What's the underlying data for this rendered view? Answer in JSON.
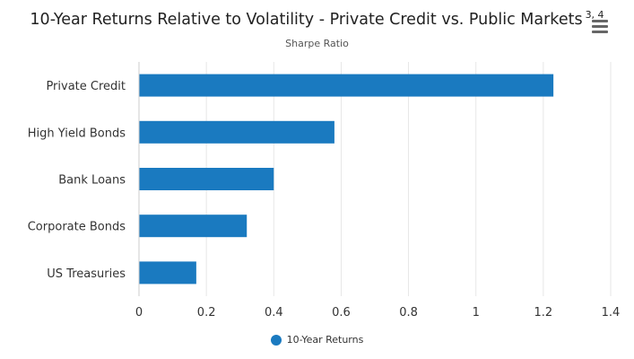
{
  "header": {
    "title": "10-Year Returns Relative to Volatility - Private Credit vs. Public Markets",
    "title_superscript": "3, 4",
    "subtitle": "Sharpe Ratio",
    "menu_icon": "hamburger-menu-icon"
  },
  "legend": {
    "label": "10-Year Returns"
  },
  "colors": {
    "bar": "#1a7ac0",
    "grid": "#e6e6e6",
    "axis_text": "#333333"
  },
  "chart_data": {
    "type": "bar",
    "orientation": "horizontal",
    "categories": [
      "Private Credit",
      "High Yield Bonds",
      "Bank Loans",
      "Corporate Bonds",
      "US Treasuries"
    ],
    "series": [
      {
        "name": "10-Year Returns",
        "values": [
          1.23,
          0.58,
          0.4,
          0.32,
          0.17
        ]
      }
    ],
    "title": "10-Year Returns Relative to Volatility - Private Credit vs. Public Markets",
    "subtitle": "Sharpe Ratio",
    "xlim": [
      0,
      1.4
    ],
    "xticks": [
      "0",
      "0.2",
      "0.4",
      "0.6",
      "0.8",
      "1",
      "1.2",
      "1.4"
    ],
    "grid": true,
    "legend_position": "bottom-center"
  }
}
